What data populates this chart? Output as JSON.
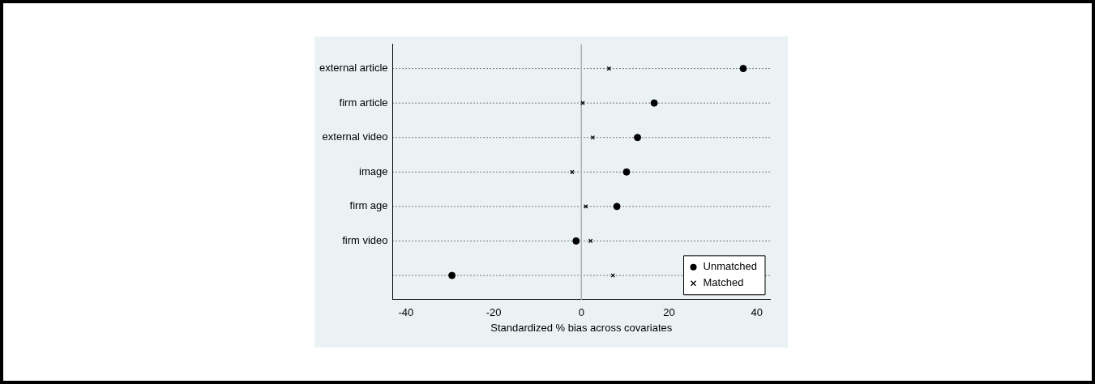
{
  "chart_data": {
    "type": "scatter",
    "xlabel": "Standardized % bias across covariates",
    "categories": [
      "external article",
      "firm article",
      "external video",
      "image",
      "firm age",
      "firm video",
      null
    ],
    "series": [
      {
        "name": "Unmatched",
        "color": "#000000",
        "marker": "circle",
        "values": [
          36.9,
          16.6,
          12.8,
          10.3,
          8.1,
          -1.2,
          -29.5
        ]
      },
      {
        "name": "Matched",
        "color": "#000000",
        "marker": "cross",
        "values": [
          6.3,
          0.3,
          2.6,
          -2.1,
          1.0,
          2.1,
          7.2
        ]
      }
    ],
    "orientation": "horizontal",
    "xlim": [
      -43,
      43
    ],
    "xticks": [
      -40,
      -20,
      0,
      20,
      40
    ],
    "ref_lines": [
      {
        "axis": "x",
        "value": 0,
        "color": "#b0b0b0"
      }
    ],
    "grid": "y",
    "line_style": "dotted",
    "legend": "bottom right"
  }
}
